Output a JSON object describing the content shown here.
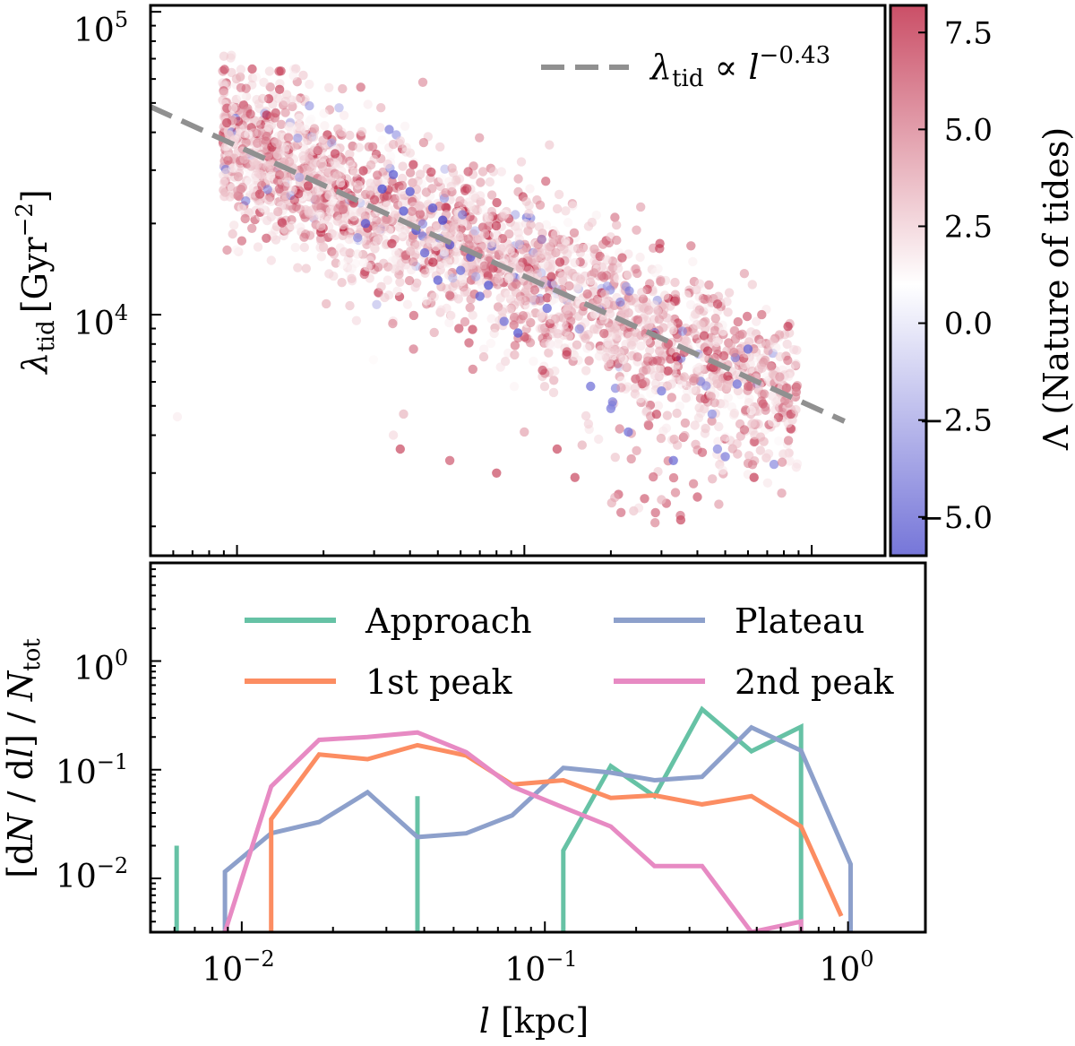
{
  "chart_data": [
    {
      "type": "scatter",
      "panel": "top",
      "title": "",
      "xlabel": "",
      "ylabel_main": "λ",
      "ylabel_sub": "tid",
      "ylabel_unit": "[Gyr",
      "ylabel_exp": "−2",
      "ylabel_close": "]",
      "xscale": "log",
      "yscale": "log",
      "xlim": [
        0.005,
        1.8
      ],
      "ylim": [
        1600,
        105000
      ],
      "ytick_labels": [
        {
          "value": 100000,
          "base": "10",
          "exp": "5"
        },
        {
          "value": 10000,
          "base": "10",
          "exp": "4"
        }
      ],
      "fit_line": {
        "style": "dashed",
        "color": "#909090",
        "exponent": -0.43,
        "anchor_x": 0.1,
        "anchor_y": 13400,
        "legend_main": "λ",
        "legend_sub": "tid",
        "legend_prop": " ∝ ",
        "legend_var": "l",
        "legend_exp": "−0.43"
      },
      "colorbar": {
        "label": "Λ (Nature of tides)",
        "range": [
          -6.0,
          8.2
        ],
        "center": 1.0,
        "tick_labels": [
          {
            "value": 7.5,
            "label": "7.5"
          },
          {
            "value": 5.0,
            "label": "5.0"
          },
          {
            "value": 2.5,
            "label": "2.5"
          },
          {
            "value": 0.0,
            "label": "0.0"
          },
          {
            "value": -2.5,
            "label": "−2.5"
          },
          {
            "value": -5.0,
            "label": "−5.0"
          }
        ]
      },
      "point_cloud": {
        "count": 2600,
        "log10_x_range": [
          -2.05,
          -0.05
        ],
        "slope": -0.43,
        "scatter_dex": 0.13,
        "tail_x_range": [
          -0.8,
          -0.3
        ],
        "tail_y_range": [
          2000,
          4500
        ],
        "lambda_distribution": "mostly weakly positive (pale red), some strongly positive (red), few negative (blue)"
      },
      "points": [
        {
          "x": 0.0062,
          "y": 4600,
          "L": 1.5
        },
        {
          "x": 0.012,
          "y": 25000,
          "L": 6.0
        },
        {
          "x": 0.028,
          "y": 20000,
          "L": -5.0
        },
        {
          "x": 0.032,
          "y": 26000,
          "L": -5.5
        },
        {
          "x": 0.035,
          "y": 29000,
          "L": -4.8
        },
        {
          "x": 0.038,
          "y": 22000,
          "L": -5.2
        },
        {
          "x": 0.04,
          "y": 25500,
          "L": -5.0
        },
        {
          "x": 0.042,
          "y": 19000,
          "L": -5.3
        },
        {
          "x": 0.045,
          "y": 16000,
          "L": -4.5
        },
        {
          "x": 0.048,
          "y": 22500,
          "L": -5.0
        },
        {
          "x": 0.05,
          "y": 13000,
          "L": -4.8
        },
        {
          "x": 0.052,
          "y": 20500,
          "L": -5.6
        },
        {
          "x": 0.055,
          "y": 17000,
          "L": -5.0
        },
        {
          "x": 0.06,
          "y": 14000,
          "L": -4.2
        },
        {
          "x": 0.065,
          "y": 15500,
          "L": -5.0
        },
        {
          "x": 0.07,
          "y": 11500,
          "L": -4.6
        },
        {
          "x": 0.075,
          "y": 12500,
          "L": -5.2
        },
        {
          "x": 0.085,
          "y": 9500,
          "L": -4.0
        },
        {
          "x": 0.095,
          "y": 8700,
          "L": -5.0
        },
        {
          "x": 0.12,
          "y": 10500,
          "L": -4.4
        },
        {
          "x": 0.17,
          "y": 5800,
          "L": -4.0
        },
        {
          "x": 0.2,
          "y": 4900,
          "L": -3.6
        },
        {
          "x": 0.23,
          "y": 4100,
          "L": -4.0
        },
        {
          "x": 0.3,
          "y": 5600,
          "L": -3.8
        },
        {
          "x": 0.33,
          "y": 3300,
          "L": -4.2
        },
        {
          "x": 0.45,
          "y": 4700,
          "L": -2.8
        },
        {
          "x": 0.47,
          "y": 3600,
          "L": -3.0
        },
        {
          "x": 0.5,
          "y": 3400,
          "L": -3.5
        },
        {
          "x": 0.55,
          "y": 5900,
          "L": -4.0
        },
        {
          "x": 0.6,
          "y": 7700,
          "L": -4.5
        },
        {
          "x": 0.35,
          "y": 2100,
          "L": 6.0
        },
        {
          "x": 0.4,
          "y": 2500,
          "L": 5.5
        },
        {
          "x": 0.3,
          "y": 2450,
          "L": 3.0
        },
        {
          "x": 0.25,
          "y": 2300,
          "L": 1.8
        },
        {
          "x": 0.24,
          "y": 2250,
          "L": 2.5
        },
        {
          "x": 0.15,
          "y": 2900,
          "L": 6.0
        },
        {
          "x": 0.13,
          "y": 3600,
          "L": 6.0
        },
        {
          "x": 0.055,
          "y": 3300,
          "L": 5.5
        },
        {
          "x": 0.038,
          "y": 4700,
          "L": 3.0
        },
        {
          "x": 0.035,
          "y": 4000,
          "L": 2.0
        },
        {
          "x": 0.037,
          "y": 3600,
          "L": 6.0
        },
        {
          "x": 0.08,
          "y": 3000,
          "L": 6.0
        },
        {
          "x": 0.1,
          "y": 4100,
          "L": 3.5
        },
        {
          "x": 0.63,
          "y": 2900,
          "L": 6.0
        },
        {
          "x": 0.67,
          "y": 10000,
          "L": 5.0
        }
      ]
    },
    {
      "type": "line",
      "panel": "bottom",
      "title": "",
      "xlabel_var": "l",
      "xlabel_unit": " [kpc]",
      "ylabel_open": "[d",
      "ylabel_N": "N",
      "ylabel_mid": " / d",
      "ylabel_l": "l",
      "ylabel_close": "] / ",
      "ylabel_Ntot": "N",
      "ylabel_sub": "tot",
      "xscale": "log",
      "yscale": "log",
      "xlim": [
        0.005,
        1.8
      ],
      "ylim": [
        0.0032,
        8.0
      ],
      "xtick_labels": [
        {
          "value": 0.01,
          "base": "10",
          "exp": "−2"
        },
        {
          "value": 0.1,
          "base": "10",
          "exp": "−1"
        },
        {
          "value": 1.0,
          "base": "10",
          "exp": "0"
        }
      ],
      "ytick_labels": [
        {
          "value": 1.0,
          "base": "10",
          "exp": "0"
        },
        {
          "value": 0.1,
          "base": "10",
          "exp": "−1"
        },
        {
          "value": 0.01,
          "base": "10",
          "exp": "−2"
        }
      ],
      "legend_position": "upper",
      "series": [
        {
          "name": "Approach",
          "color": "#66c2a5",
          "segments": [
            [
              [
                0.0061,
                0.0032
              ],
              [
                0.0061,
                0.02
              ]
            ],
            [
              [
                0.038,
                0.0032
              ],
              [
                0.038,
                0.057
              ]
            ],
            [
              [
                0.115,
                0.0032
              ],
              [
                0.115,
                0.018
              ],
              [
                0.165,
                0.108
              ],
              [
                0.23,
                0.057
              ],
              [
                0.33,
                0.36
              ],
              [
                0.48,
                0.148
              ],
              [
                0.7,
                0.248
              ],
              [
                0.7,
                0.0032
              ]
            ]
          ]
        },
        {
          "name": "Plateau",
          "color": "#8da0cb",
          "segments": [
            [
              [
                0.0088,
                0.0032
              ],
              [
                0.0088,
                0.0115
              ],
              [
                0.0125,
                0.026
              ],
              [
                0.018,
                0.033
              ],
              [
                0.026,
                0.062
              ],
              [
                0.038,
                0.024
              ],
              [
                0.055,
                0.026
              ],
              [
                0.078,
                0.038
              ],
              [
                0.115,
                0.104
              ],
              [
                0.165,
                0.094
              ],
              [
                0.23,
                0.08
              ],
              [
                0.33,
                0.086
              ],
              [
                0.48,
                0.245
              ],
              [
                0.7,
                0.15
              ],
              [
                1.02,
                0.0135
              ],
              [
                1.02,
                0.0032
              ]
            ]
          ]
        },
        {
          "name": "1st peak",
          "color": "#fc8d62",
          "segments": [
            [
              [
                0.0125,
                0.0032
              ],
              [
                0.0125,
                0.035
              ],
              [
                0.018,
                0.138
              ],
              [
                0.026,
                0.125
              ],
              [
                0.038,
                0.168
              ],
              [
                0.055,
                0.135
              ],
              [
                0.078,
                0.073
              ],
              [
                0.115,
                0.08
              ],
              [
                0.165,
                0.055
              ],
              [
                0.23,
                0.058
              ],
              [
                0.33,
                0.048
              ],
              [
                0.48,
                0.057
              ],
              [
                0.7,
                0.03
              ],
              [
                0.95,
                0.0045
              ]
            ]
          ]
        },
        {
          "name": "2nd peak",
          "color": "#e78ac3",
          "segments": [
            [
              [
                0.0088,
                0.0032
              ],
              [
                0.0125,
                0.07
              ],
              [
                0.018,
                0.188
              ],
              [
                0.026,
                0.2
              ],
              [
                0.038,
                0.22
              ],
              [
                0.055,
                0.145
              ],
              [
                0.078,
                0.07
              ],
              [
                0.115,
                0.045
              ],
              [
                0.165,
                0.03
              ],
              [
                0.23,
                0.013
              ],
              [
                0.33,
                0.013
              ],
              [
                0.48,
                0.0032
              ],
              [
                0.7,
                0.004
              ],
              [
                0.7,
                0.0032
              ]
            ]
          ]
        }
      ]
    }
  ]
}
